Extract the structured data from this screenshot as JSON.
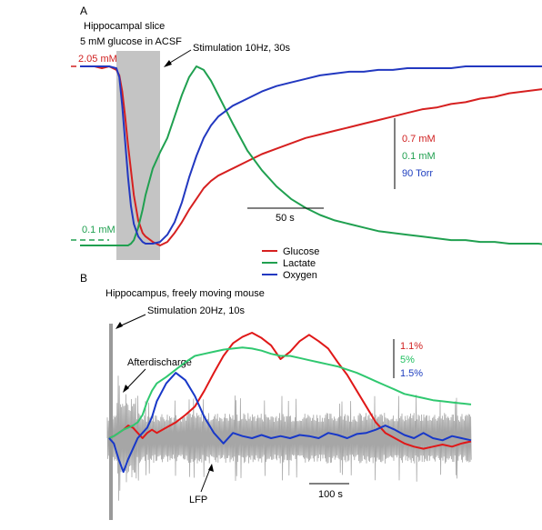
{
  "chart_data": [
    {
      "type": "line",
      "panel_label": "A",
      "annotations": {
        "condition_line1": "Hippocampal slice",
        "condition_line2": "5 mM glucose in ACSF",
        "stimulation": "Stimulation 10Hz, 30s",
        "baseline_top": "2.05 mM",
        "baseline_bottom": "0.1 mM"
      },
      "time_scale_bar": "50 s",
      "scale_labels": [
        {
          "text": "0.7 mM",
          "color": "#d02020"
        },
        {
          "text": "0.1 mM",
          "color": "#20a050"
        },
        {
          "text": "90 Torr",
          "color": "#2040c0"
        }
      ],
      "legend": [
        "Glucose",
        "Lactate",
        "Oxygen"
      ],
      "legend_placement": "bottom-center",
      "stimulation_window": [
        0,
        30
      ],
      "x": [
        -25,
        -20,
        -15,
        -10,
        -5,
        0,
        2,
        4,
        6,
        8,
        10,
        12,
        15,
        18,
        20,
        25,
        30,
        35,
        40,
        45,
        50,
        55,
        60,
        65,
        70,
        80,
        90,
        100,
        110,
        120,
        130,
        140,
        150,
        160,
        170,
        180,
        190,
        200,
        210,
        220,
        230,
        240,
        250,
        260,
        270,
        280,
        290,
        300
      ],
      "series": [
        {
          "name": "Glucose",
          "color": "#d62020",
          "values": [
            1.0,
            1.0,
            1.0,
            0.99,
            1.0,
            0.98,
            0.95,
            0.86,
            0.72,
            0.56,
            0.42,
            0.28,
            0.14,
            0.07,
            0.05,
            0.02,
            0.0,
            0.02,
            0.07,
            0.13,
            0.2,
            0.26,
            0.32,
            0.36,
            0.39,
            0.43,
            0.47,
            0.51,
            0.54,
            0.57,
            0.6,
            0.62,
            0.64,
            0.66,
            0.68,
            0.7,
            0.72,
            0.74,
            0.76,
            0.77,
            0.79,
            0.8,
            0.82,
            0.83,
            0.85,
            0.86,
            0.87,
            0.88
          ]
        },
        {
          "name": "Lactate",
          "color": "#20a050",
          "values": [
            0.0,
            0.0,
            0.0,
            0.0,
            0.0,
            0.0,
            0.0,
            0.0,
            0.0,
            0.0,
            0.01,
            0.03,
            0.1,
            0.2,
            0.28,
            0.43,
            0.52,
            0.6,
            0.72,
            0.84,
            0.94,
            1.0,
            0.98,
            0.92,
            0.84,
            0.68,
            0.53,
            0.42,
            0.33,
            0.26,
            0.21,
            0.17,
            0.14,
            0.12,
            0.1,
            0.08,
            0.07,
            0.06,
            0.05,
            0.04,
            0.03,
            0.03,
            0.02,
            0.02,
            0.01,
            0.01,
            0.01,
            0.0
          ]
        },
        {
          "name": "Oxygen",
          "color": "#2238c0",
          "values": [
            1.0,
            1.0,
            1.0,
            1.0,
            1.0,
            0.99,
            0.94,
            0.78,
            0.58,
            0.38,
            0.22,
            0.12,
            0.05,
            0.02,
            0.01,
            0.01,
            0.02,
            0.06,
            0.13,
            0.24,
            0.38,
            0.5,
            0.6,
            0.67,
            0.72,
            0.78,
            0.82,
            0.86,
            0.89,
            0.91,
            0.93,
            0.95,
            0.96,
            0.97,
            0.97,
            0.98,
            0.98,
            0.99,
            0.99,
            0.99,
            0.99,
            1.0,
            1.0,
            1.0,
            1.0,
            1.0,
            1.0,
            1.0
          ]
        }
      ]
    },
    {
      "type": "line",
      "panel_label": "B",
      "annotations": {
        "condition": "Hippocampus, freely moving mouse",
        "stimulation": "Stimulation 20Hz, 10s",
        "afterdischarge": "Afterdischarge",
        "lfp": "LFP"
      },
      "time_scale_bar": "100 s",
      "scale_labels": [
        {
          "text": "1.1%",
          "color": "#d02020"
        },
        {
          "text": "5%",
          "color": "#20c060"
        },
        {
          "text": "1.5%",
          "color": "#2040c0"
        }
      ],
      "x": [
        0,
        10,
        20,
        30,
        40,
        50,
        60,
        70,
        80,
        90,
        100,
        120,
        140,
        160,
        180,
        200,
        220,
        240,
        260,
        280,
        300,
        320,
        340,
        360,
        380,
        400,
        420,
        440,
        460,
        480,
        500,
        520,
        540,
        560,
        580,
        600,
        620,
        640,
        660,
        680,
        700,
        720,
        740,
        760
      ],
      "series": [
        {
          "name": "Glucose",
          "color": "#e01818",
          "values": [
            0.0,
            0.02,
            0.05,
            0.08,
            0.12,
            0.1,
            0.05,
            0.0,
            0.05,
            0.08,
            0.05,
            0.1,
            0.15,
            0.22,
            0.3,
            0.45,
            0.62,
            0.78,
            0.9,
            0.96,
            1.0,
            0.95,
            0.88,
            0.75,
            0.82,
            0.92,
            0.98,
            0.92,
            0.85,
            0.72,
            0.6,
            0.45,
            0.3,
            0.15,
            0.05,
            0.0,
            -0.05,
            -0.08,
            -0.1,
            -0.08,
            -0.06,
            -0.08,
            -0.05,
            -0.03
          ]
        },
        {
          "name": "Lactate",
          "color": "#30c870",
          "values": [
            0.0,
            0.02,
            0.05,
            0.08,
            0.1,
            0.12,
            0.15,
            0.22,
            0.35,
            0.45,
            0.52,
            0.58,
            0.65,
            0.72,
            0.78,
            0.8,
            0.82,
            0.84,
            0.85,
            0.86,
            0.85,
            0.83,
            0.8,
            0.78,
            0.78,
            0.76,
            0.74,
            0.72,
            0.7,
            0.68,
            0.65,
            0.62,
            0.58,
            0.54,
            0.5,
            0.46,
            0.42,
            0.4,
            0.38,
            0.36,
            0.35,
            0.34,
            0.33,
            0.32
          ]
        },
        {
          "name": "Oxygen",
          "color": "#1838c8",
          "values": [
            0.0,
            -0.05,
            -0.2,
            -0.32,
            -0.2,
            -0.1,
            0.0,
            0.05,
            0.1,
            0.2,
            0.35,
            0.52,
            0.62,
            0.55,
            0.4,
            0.2,
            0.05,
            -0.05,
            0.05,
            0.02,
            0.0,
            0.03,
            0.0,
            0.02,
            0.0,
            0.03,
            0.02,
            0.0,
            0.05,
            0.03,
            0.0,
            0.04,
            0.05,
            0.08,
            0.12,
            0.08,
            0.03,
            0.0,
            0.05,
            0.0,
            -0.02,
            0.02,
            0.0,
            -0.02
          ]
        }
      ]
    }
  ]
}
